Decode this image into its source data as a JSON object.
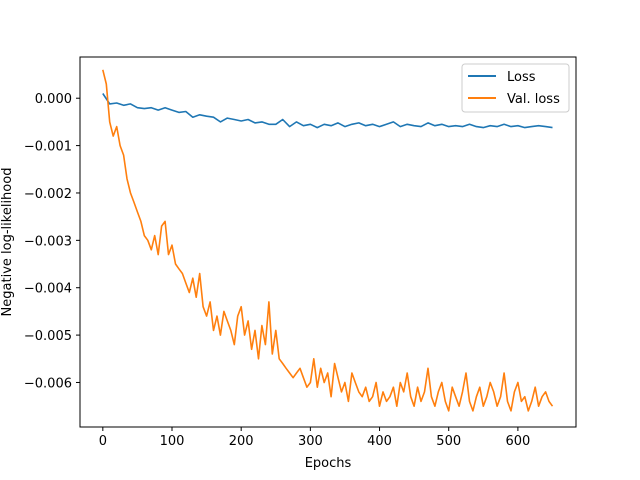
{
  "chart_data": {
    "type": "line",
    "xlabel": "Epochs",
    "ylabel": "Negative log-likelihood",
    "xlim": [
      -33,
      684
    ],
    "ylim": [
      -0.00694,
      0.00087
    ],
    "xticks": [
      0,
      100,
      200,
      300,
      400,
      500,
      600
    ],
    "yticks": [
      0.0,
      -0.001,
      -0.002,
      -0.003,
      -0.004,
      -0.005,
      -0.006
    ],
    "ytick_labels": [
      "0.000",
      "−0.001",
      "−0.002",
      "−0.003",
      "−0.004",
      "−0.005",
      "−0.006"
    ],
    "legend_position": "upper-right",
    "grid": false,
    "series": [
      {
        "name": "Loss",
        "color": "#1f77b4",
        "x": [
          0,
          10,
          20,
          30,
          40,
          50,
          60,
          70,
          80,
          90,
          100,
          110,
          120,
          130,
          140,
          150,
          160,
          170,
          180,
          190,
          200,
          210,
          220,
          230,
          240,
          250,
          260,
          270,
          280,
          290,
          300,
          310,
          320,
          330,
          340,
          350,
          360,
          370,
          380,
          390,
          400,
          410,
          420,
          430,
          440,
          450,
          460,
          470,
          480,
          490,
          500,
          510,
          520,
          530,
          540,
          550,
          560,
          570,
          580,
          590,
          600,
          610,
          620,
          630,
          640,
          650
        ],
        "y": [
          0.0001,
          -0.00012,
          -0.0001,
          -0.00015,
          -0.00012,
          -0.0002,
          -0.00022,
          -0.0002,
          -0.00025,
          -0.0002,
          -0.00025,
          -0.0003,
          -0.00028,
          -0.0004,
          -0.00035,
          -0.00038,
          -0.0004,
          -0.0005,
          -0.00042,
          -0.00045,
          -0.00048,
          -0.00045,
          -0.00052,
          -0.0005,
          -0.00055,
          -0.00055,
          -0.00045,
          -0.0006,
          -0.0005,
          -0.00058,
          -0.00055,
          -0.00062,
          -0.00055,
          -0.00058,
          -0.00052,
          -0.0006,
          -0.00055,
          -0.00052,
          -0.00058,
          -0.00055,
          -0.0006,
          -0.00055,
          -0.0005,
          -0.0006,
          -0.00055,
          -0.00058,
          -0.0006,
          -0.00052,
          -0.00058,
          -0.00055,
          -0.0006,
          -0.00058,
          -0.0006,
          -0.00055,
          -0.0006,
          -0.00062,
          -0.00058,
          -0.0006,
          -0.00055,
          -0.0006,
          -0.00058,
          -0.00062,
          -0.0006,
          -0.00058,
          -0.0006,
          -0.00062
        ]
      },
      {
        "name": "Val. loss",
        "color": "#ff7f0e",
        "x": [
          0,
          5,
          10,
          15,
          20,
          25,
          30,
          35,
          40,
          45,
          50,
          55,
          60,
          65,
          70,
          75,
          80,
          85,
          90,
          95,
          100,
          105,
          110,
          115,
          120,
          125,
          130,
          135,
          140,
          145,
          150,
          155,
          160,
          165,
          170,
          175,
          180,
          185,
          190,
          195,
          200,
          205,
          210,
          215,
          220,
          225,
          230,
          235,
          240,
          245,
          250,
          255,
          260,
          265,
          270,
          275,
          280,
          285,
          290,
          295,
          300,
          305,
          310,
          315,
          320,
          325,
          330,
          335,
          340,
          345,
          350,
          355,
          360,
          365,
          370,
          375,
          380,
          385,
          390,
          395,
          400,
          405,
          410,
          415,
          420,
          425,
          430,
          435,
          440,
          445,
          450,
          455,
          460,
          465,
          470,
          475,
          480,
          485,
          490,
          495,
          500,
          505,
          510,
          515,
          520,
          525,
          530,
          535,
          540,
          545,
          550,
          555,
          560,
          565,
          570,
          575,
          580,
          585,
          590,
          595,
          600,
          605,
          610,
          615,
          620,
          625,
          630,
          635,
          640,
          645,
          650
        ],
        "y": [
          0.0006,
          0.0003,
          -0.0005,
          -0.0008,
          -0.0006,
          -0.001,
          -0.0012,
          -0.0017,
          -0.002,
          -0.0022,
          -0.0024,
          -0.0026,
          -0.0029,
          -0.003,
          -0.0032,
          -0.0029,
          -0.0033,
          -0.0027,
          -0.0026,
          -0.0033,
          -0.0031,
          -0.0035,
          -0.0036,
          -0.0037,
          -0.0039,
          -0.0041,
          -0.0038,
          -0.0042,
          -0.0037,
          -0.0044,
          -0.0046,
          -0.0043,
          -0.0049,
          -0.0046,
          -0.005,
          -0.0045,
          -0.0047,
          -0.0049,
          -0.0052,
          -0.0046,
          -0.0044,
          -0.005,
          -0.0047,
          -0.0053,
          -0.0049,
          -0.0055,
          -0.0048,
          -0.0052,
          -0.0043,
          -0.0054,
          -0.0049,
          -0.0055,
          -0.0056,
          -0.0057,
          -0.0058,
          -0.0059,
          -0.0058,
          -0.0057,
          -0.0059,
          -0.0061,
          -0.006,
          -0.0055,
          -0.0061,
          -0.0057,
          -0.006,
          -0.0058,
          -0.0063,
          -0.0056,
          -0.0059,
          -0.0062,
          -0.006,
          -0.0064,
          -0.0058,
          -0.006,
          -0.0062,
          -0.0063,
          -0.0061,
          -0.0064,
          -0.0063,
          -0.006,
          -0.0065,
          -0.0062,
          -0.0064,
          -0.0063,
          -0.0061,
          -0.0065,
          -0.006,
          -0.0062,
          -0.0058,
          -0.0063,
          -0.0065,
          -0.0061,
          -0.0064,
          -0.0062,
          -0.0057,
          -0.0063,
          -0.0065,
          -0.0062,
          -0.006,
          -0.0064,
          -0.0066,
          -0.0061,
          -0.0063,
          -0.0065,
          -0.0062,
          -0.0058,
          -0.0064,
          -0.0066,
          -0.0063,
          -0.0061,
          -0.0065,
          -0.0063,
          -0.006,
          -0.0062,
          -0.0065,
          -0.0063,
          -0.0058,
          -0.0064,
          -0.0066,
          -0.0062,
          -0.006,
          -0.0064,
          -0.0063,
          -0.0066,
          -0.0064,
          -0.0061,
          -0.0065,
          -0.0063,
          -0.0062,
          -0.0064,
          -0.0065
        ]
      }
    ]
  }
}
